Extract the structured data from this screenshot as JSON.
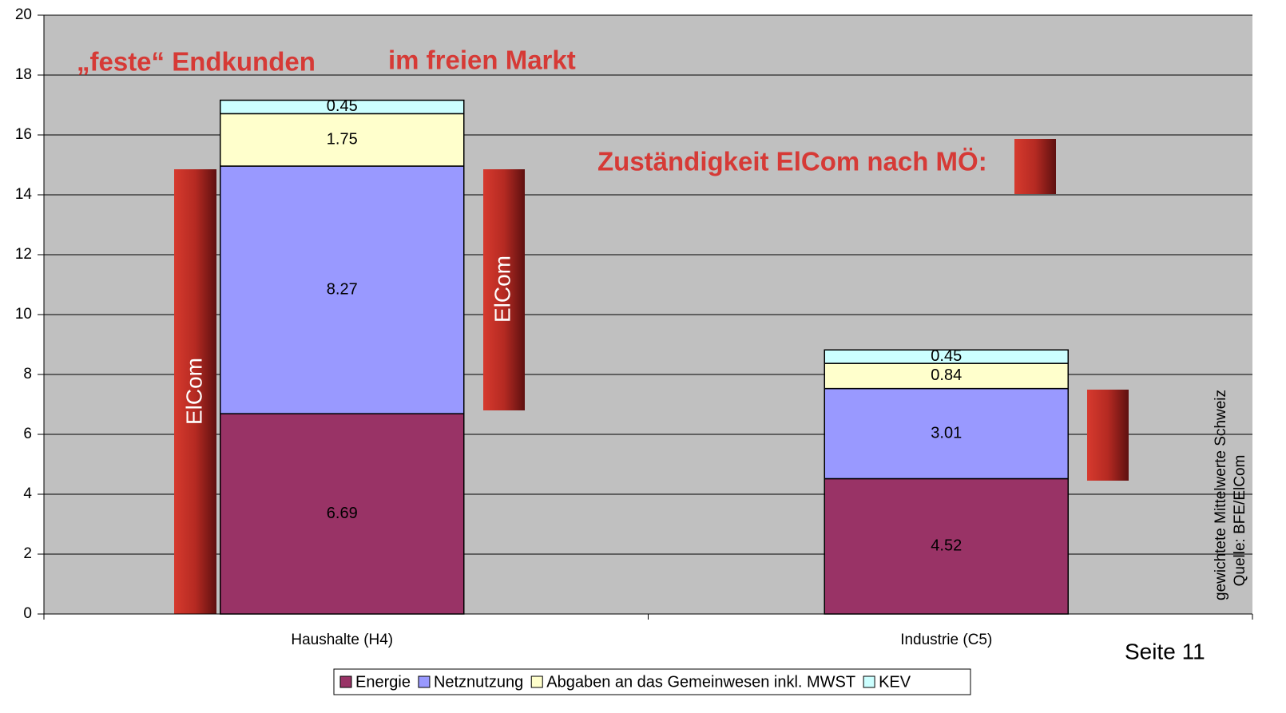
{
  "chart_data": {
    "type": "stacked_bar",
    "categories": [
      "Haushalte (H4)",
      "Industrie (C5)"
    ],
    "series": [
      {
        "name": "Energie",
        "color": "#993366",
        "values": [
          6.69,
          4.52
        ]
      },
      {
        "name": "Netznutzung",
        "color": "#9999ff",
        "values": [
          8.27,
          3.01
        ]
      },
      {
        "name": "Abgaben an das Gemeinwesen inkl. MWST",
        "color": "#ffffcc",
        "values": [
          1.75,
          0.84
        ]
      },
      {
        "name": "KEV",
        "color": "#ccffff",
        "values": [
          0.45,
          0.45
        ]
      }
    ],
    "ylim": [
      0,
      20
    ],
    "yticks": [
      0,
      2,
      4,
      6,
      8,
      10,
      12,
      14,
      16,
      18,
      20
    ],
    "grid": true,
    "legend": "bottom",
    "annotations": [
      "„feste“ Endkunden",
      "im freien Markt",
      "Zuständigkeit ElCom nach MÖ:",
      "ElCom",
      "ElCom",
      "gewichtete Mittelwerte Schweiz",
      "Quelle: BFE/ElCom",
      "Seite 11"
    ]
  }
}
